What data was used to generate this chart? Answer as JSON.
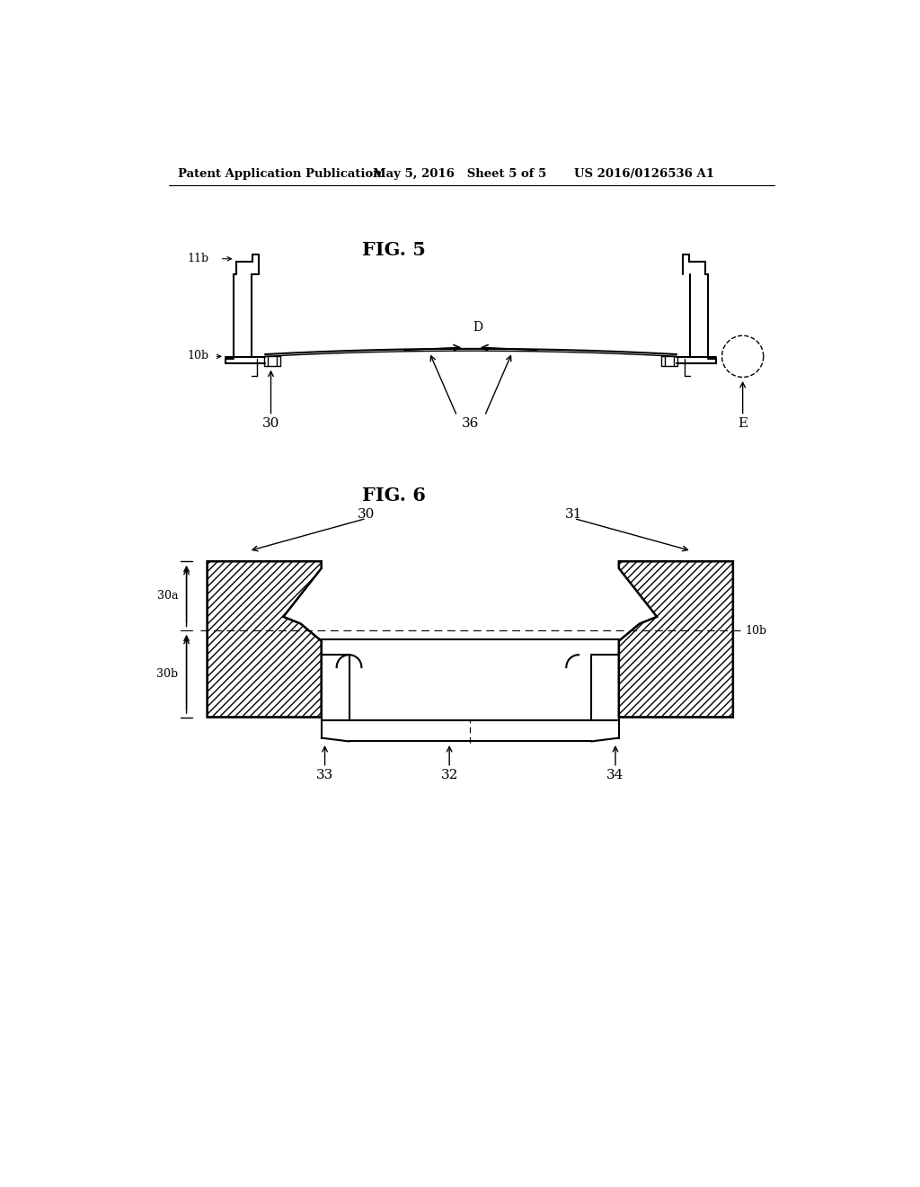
{
  "bg_color": "#ffffff",
  "header_left": "Patent Application Publication",
  "header_mid": "May 5, 2016   Sheet 5 of 5",
  "header_right": "US 2016/0126536 A1",
  "fig5_title": "FIG. 5",
  "fig6_title": "FIG. 6",
  "line_color": "#000000"
}
